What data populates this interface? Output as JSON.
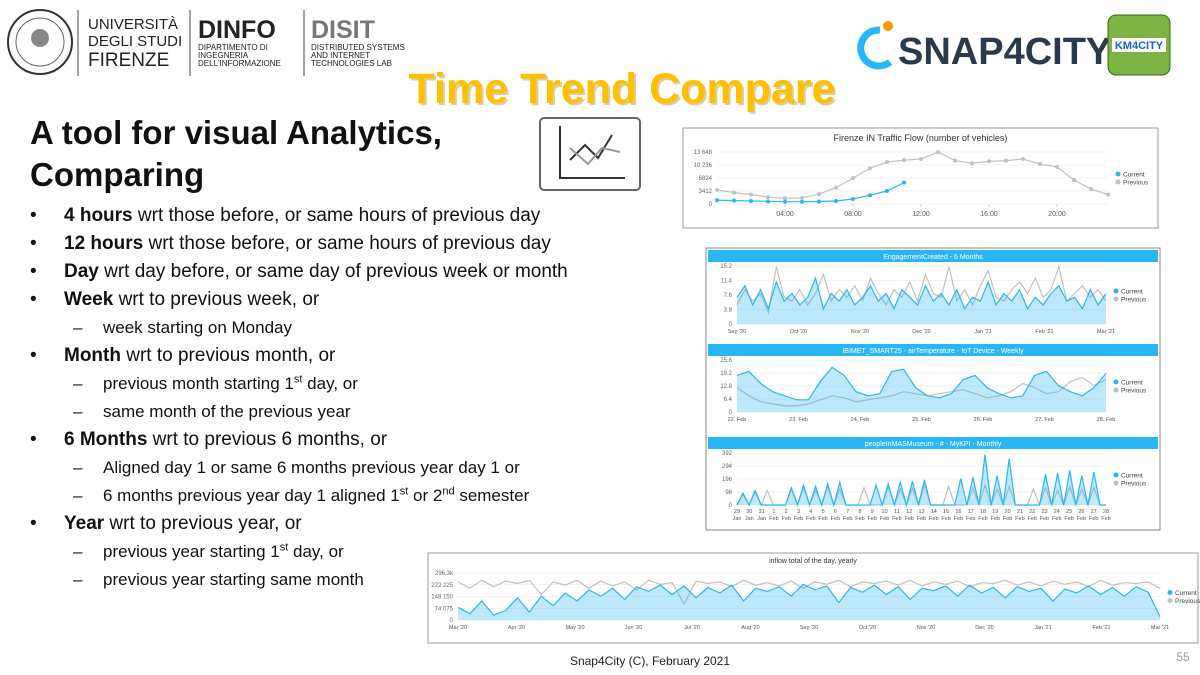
{
  "header": {
    "university": [
      "UNIVERSITÀ",
      "DEGLI STUDI",
      "FIRENZE"
    ],
    "dinfo": {
      "name": "DINFO",
      "lines": [
        "DIPARTIMENTO DI",
        "INGEGNERIA",
        "DELL'INFORMAZIONE"
      ]
    },
    "disit": {
      "name": "DISIT",
      "lines": [
        "DISTRIBUTED SYSTEMS",
        "AND INTERNET",
        "TECHNOLOGIES LAB"
      ]
    },
    "snap4city": "SNAP4CITY",
    "km4city": "KM4CITY"
  },
  "title": "Time Trend Compare",
  "heading": [
    "A tool for visual Analytics,",
    "Comparing"
  ],
  "bullets": [
    {
      "runs": [
        {
          "text": "4 hours",
          "bold": true
        },
        {
          "text": " wrt those before, or same hours of previous day"
        }
      ]
    },
    {
      "runs": [
        {
          "text": "12 hours",
          "bold": true
        },
        {
          "text": " wrt those before, or same hours of previous day"
        }
      ]
    },
    {
      "runs": [
        {
          "text": "Day",
          "bold": true
        },
        {
          "text": " wrt day before, or same day of previous week or month"
        }
      ]
    },
    {
      "runs": [
        {
          "text": "Week",
          "bold": true
        },
        {
          "text": " wrt to previous week, or"
        }
      ],
      "sub": [
        {
          "runs": [
            {
              "text": "week starting on Monday"
            }
          ]
        }
      ]
    },
    {
      "runs": [
        {
          "text": "Month",
          "bold": true
        },
        {
          "text": " wrt to previous month, or"
        }
      ],
      "sub": [
        {
          "runs": [
            {
              "text": "previous month starting 1"
            },
            {
              "text": "st",
              "sup": true
            },
            {
              "text": " day, or"
            }
          ]
        },
        {
          "runs": [
            {
              "text": "same month of the previous year"
            }
          ]
        }
      ]
    },
    {
      "runs": [
        {
          "text": "6 Months",
          "bold": true
        },
        {
          "text": " wrt to previous 6 months, or"
        }
      ],
      "sub": [
        {
          "runs": [
            {
              "text": "Aligned day 1 or same 6 months previous year day 1  or"
            }
          ]
        },
        {
          "runs": [
            {
              "text": "6 months previous year day 1  aligned 1"
            },
            {
              "text": "st",
              "sup": true
            },
            {
              "text": " or 2"
            },
            {
              "text": "nd",
              "sup": true
            },
            {
              "text": " semester"
            }
          ]
        }
      ]
    },
    {
      "runs": [
        {
          "text": "Year",
          "bold": true
        },
        {
          "text": " wrt to previous year, or"
        }
      ],
      "sub": [
        {
          "runs": [
            {
              "text": "previous year starting 1"
            },
            {
              "text": "st",
              "sup": true
            },
            {
              "text": " day, or"
            }
          ]
        },
        {
          "runs": [
            {
              "text": "previous year starting same month"
            }
          ]
        }
      ]
    }
  ],
  "charts": [
    {
      "type": "line",
      "title": "Firenze IN Traffic Flow (number of vehicles)",
      "header": "plain",
      "xlim": [
        0,
        23
      ],
      "xticks": [
        {
          "value": 4,
          "label": "04:00"
        },
        {
          "value": 8,
          "label": "08:00"
        },
        {
          "value": 12,
          "label": "12:00"
        },
        {
          "value": 16,
          "label": "16:00"
        },
        {
          "value": 20,
          "label": "20:00"
        }
      ],
      "ylim": [
        0,
        13648
      ],
      "yticks": [
        0,
        3412,
        6824,
        {
          "value": 10236,
          "label": "10 236"
        },
        {
          "value": 13648,
          "label": "13 648"
        }
      ],
      "x": [
        0,
        1,
        2,
        3,
        4,
        5,
        6,
        7,
        8,
        9,
        10,
        11,
        12,
        13,
        14,
        15,
        16,
        17,
        18,
        19,
        20,
        21,
        22,
        23
      ],
      "markers": true,
      "series": [
        {
          "name": "Current",
          "color": "#29b6f6",
          "values": [
            1000,
            900,
            800,
            700,
            600,
            600,
            650,
            800,
            1300,
            2300,
            3400,
            5600,
            null,
            null,
            null,
            null,
            null,
            null,
            null,
            null,
            null,
            null,
            null,
            null
          ]
        },
        {
          "name": "Previous",
          "color": "#c0c0c0",
          "values": [
            3700,
            3000,
            2500,
            1800,
            1500,
            1600,
            2600,
            4300,
            6800,
            9400,
            11000,
            11500,
            11800,
            13600,
            11400,
            10700,
            11200,
            11400,
            11800,
            10500,
            9700,
            6300,
            3900,
            2500
          ]
        }
      ]
    },
    {
      "type": "line",
      "title": "EngagementCreated - 6 Months",
      "header": "bar",
      "x_labels": [
        "Sep '20",
        "Oct '20",
        "Nov '20",
        "Dec '20",
        "Jan '21",
        "Feb '21",
        "Mar '21"
      ],
      "ylim": [
        0,
        15.2
      ],
      "yticks": [
        0,
        3.8,
        7.6,
        11.4,
        15.2
      ],
      "series": [
        {
          "name": "Current",
          "color": "#29b6f6",
          "fill": true,
          "values": [
            7,
            10,
            5,
            9,
            4,
            11,
            6,
            8,
            5,
            7,
            12,
            4,
            8,
            6,
            9,
            5,
            7,
            10,
            6,
            8,
            4,
            9,
            7,
            5,
            10,
            6,
            8,
            5,
            9,
            4,
            7,
            6,
            11,
            5,
            8,
            6,
            9,
            4,
            7,
            5,
            8,
            10,
            6,
            7,
            4,
            9,
            5,
            8
          ]
        },
        {
          "name": "Previous",
          "color": "#c0c0c0",
          "values": [
            5,
            9,
            6,
            8,
            3,
            15,
            7,
            6,
            9,
            5,
            8,
            13,
            6,
            9,
            7,
            10,
            6,
            12,
            8,
            5,
            9,
            7,
            11,
            6,
            13,
            8,
            7,
            15,
            6,
            9,
            5,
            10,
            14,
            7,
            6,
            9,
            11,
            8,
            12,
            7,
            9,
            15,
            6,
            8,
            10,
            7,
            9,
            6
          ]
        }
      ]
    },
    {
      "type": "line",
      "title": "IBIMET_SMART25 - airTemperature - IoT Device - Weekly",
      "header": "bar",
      "x_labels": [
        "22. Feb",
        "23. Feb",
        "24. Feb",
        "25. Feb",
        "26. Feb",
        "27. Feb",
        "28. Feb"
      ],
      "ylim": [
        0,
        25.6
      ],
      "yticks": [
        0,
        6.4,
        12.8,
        19.2,
        25.6
      ],
      "series": [
        {
          "name": "Current",
          "color": "#29b6f6",
          "fill": true,
          "values": [
            18,
            20,
            14,
            10,
            8,
            6,
            6,
            15,
            22,
            18,
            10,
            8,
            9,
            20,
            21,
            12,
            8,
            7,
            9,
            16,
            18,
            12,
            9,
            7,
            8,
            18,
            20,
            13,
            10,
            8,
            12,
            19
          ]
        },
        {
          "name": "Previous",
          "color": "#c0c0c0",
          "values": [
            12,
            8,
            5,
            4,
            3,
            3,
            4,
            6,
            8,
            7,
            5,
            6,
            7,
            8,
            10,
            9,
            8,
            9,
            10,
            11,
            9,
            7,
            8,
            10,
            14,
            12,
            9,
            10,
            15,
            17,
            13,
            16
          ]
        }
      ]
    },
    {
      "type": "line",
      "title": "peopleInMASMuseum - # - MyKPI - Monthly",
      "header": "bar",
      "x_labels": [
        {
          "day": "29",
          "month": "Jan"
        },
        {
          "day": "30",
          "month": "Jan"
        },
        {
          "day": "31",
          "month": "Jan"
        },
        {
          "day": "1",
          "month": "Feb"
        },
        {
          "day": "2",
          "month": "Feb"
        },
        {
          "day": "3",
          "month": "Feb"
        },
        {
          "day": "4",
          "month": "Feb"
        },
        {
          "day": "5",
          "month": "Feb"
        },
        {
          "day": "6",
          "month": "Feb"
        },
        {
          "day": "7",
          "month": "Feb"
        },
        {
          "day": "8",
          "month": "Feb"
        },
        {
          "day": "9",
          "month": "Feb"
        },
        {
          "day": "10",
          "month": "Feb"
        },
        {
          "day": "11",
          "month": "Feb"
        },
        {
          "day": "12",
          "month": "Feb"
        },
        {
          "day": "13",
          "month": "Feb"
        },
        {
          "day": "14",
          "month": "Feb"
        },
        {
          "day": "15",
          "month": "Feb"
        },
        {
          "day": "16",
          "month": "Feb"
        },
        {
          "day": "17",
          "month": "Feb"
        },
        {
          "day": "18",
          "month": "Feb"
        },
        {
          "day": "19",
          "month": "Feb"
        },
        {
          "day": "20",
          "month": "Feb"
        },
        {
          "day": "21",
          "month": "Feb"
        },
        {
          "day": "22",
          "month": "Feb"
        },
        {
          "day": "23",
          "month": "Feb"
        },
        {
          "day": "24",
          "month": "Feb"
        },
        {
          "day": "25",
          "month": "Feb"
        },
        {
          "day": "26",
          "month": "Feb"
        },
        {
          "day": "27",
          "month": "Feb"
        },
        {
          "day": "28",
          "month": "Feb"
        }
      ],
      "ylim": [
        0,
        392
      ],
      "yticks": [
        0,
        98,
        196,
        294,
        392
      ],
      "series": [
        {
          "name": "Current",
          "color": "#29b6f6",
          "fill": true,
          "values": [
            0,
            90,
            0,
            110,
            0,
            0,
            0,
            0,
            0,
            130,
            0,
            150,
            0,
            140,
            0,
            160,
            0,
            170,
            0,
            0,
            0,
            0,
            0,
            150,
            0,
            160,
            0,
            170,
            0,
            180,
            0,
            190,
            0,
            0,
            0,
            0,
            0,
            200,
            0,
            210,
            0,
            380,
            0,
            220,
            0,
            350,
            0,
            0,
            0,
            0,
            0,
            230,
            0,
            240,
            0,
            260,
            0,
            220,
            0,
            250,
            0,
            0
          ]
        },
        {
          "name": "Previous",
          "color": "#c0c0c0",
          "values": [
            0,
            80,
            0,
            100,
            0,
            110,
            0,
            0,
            0,
            120,
            0,
            130,
            0,
            110,
            0,
            140,
            0,
            120,
            0,
            0,
            0,
            130,
            0,
            0,
            0,
            140,
            0,
            120,
            0,
            130,
            0,
            150,
            0,
            0,
            0,
            140,
            0,
            0,
            0,
            130,
            0,
            150,
            0,
            120,
            0,
            140,
            0,
            0,
            0,
            120,
            0,
            130,
            0,
            110,
            0,
            140,
            0,
            120,
            0,
            130,
            0,
            0
          ]
        }
      ]
    },
    {
      "type": "line",
      "title": "inflow total of the day, yearly",
      "header": "plain",
      "x_labels": [
        "Mar '20",
        "Apr '20",
        "May '20",
        "Jun '20",
        "Jul '20",
        "Aug '20",
        "Sep '20",
        "Oct '20",
        "Nov '20",
        "Dec '20",
        "Jan '21",
        "Feb '21",
        "Mar '21"
      ],
      "ylim": [
        0,
        296300
      ],
      "yticks": [
        0,
        {
          "value": 74075,
          "label": "74 075"
        },
        {
          "value": 148150,
          "label": "148 150"
        },
        {
          "value": 222225,
          "label": "222 225"
        },
        {
          "value": 296300,
          "label": "296.3k"
        }
      ],
      "series": [
        {
          "name": "Current",
          "color": "#29b6f6",
          "fill": true,
          "values": [
            80000,
            40000,
            120000,
            30000,
            60000,
            140000,
            50000,
            150000,
            90000,
            170000,
            120000,
            190000,
            150000,
            200000,
            130000,
            210000,
            180000,
            220000,
            160000,
            215000,
            140000,
            205000,
            170000,
            220000,
            120000,
            200000,
            180000,
            210000,
            150000,
            225000,
            190000,
            215000,
            110000,
            205000,
            175000,
            220000,
            160000,
            210000,
            130000,
            200000,
            185000,
            215000,
            150000,
            220000,
            170000,
            205000,
            140000,
            210000,
            180000,
            200000,
            120000,
            195000,
            170000,
            215000,
            160000,
            205000,
            150000,
            210000,
            175000,
            20000
          ]
        },
        {
          "name": "Previous",
          "color": "#c0c0c0",
          "values": [
            240000,
            200000,
            250000,
            210000,
            245000,
            230000,
            250000,
            160000,
            240000,
            220000,
            250000,
            200000,
            245000,
            215000,
            240000,
            190000,
            250000,
            225000,
            235000,
            100000,
            245000,
            230000,
            240000,
            210000,
            250000,
            220000,
            235000,
            215000,
            245000,
            200000,
            240000,
            225000,
            250000,
            210000,
            240000,
            230000,
            245000,
            220000,
            250000,
            215000,
            240000,
            225000,
            245000,
            210000,
            235000,
            230000,
            250000,
            220000,
            240000,
            215000,
            245000,
            225000,
            240000,
            210000,
            250000,
            220000,
            235000,
            230000,
            240000,
            200000
          ]
        }
      ]
    }
  ],
  "footer": "Snap4City (C), February 2021",
  "page_number": "55"
}
